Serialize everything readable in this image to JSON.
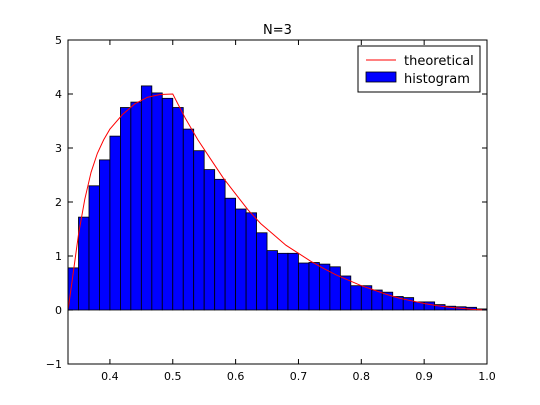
{
  "chart_data": {
    "type": "bar",
    "title": "N=3",
    "xlabel": "",
    "ylabel": "",
    "xlim": [
      0.3333,
      1.0
    ],
    "ylim": [
      -1,
      5
    ],
    "xticks": [
      0.4,
      0.5,
      0.6,
      0.7,
      0.8,
      0.9,
      1.0
    ],
    "xtick_labels": [
      "0.4",
      "0.5",
      "0.6",
      "0.7",
      "0.8",
      "0.9",
      "1.0"
    ],
    "yticks": [
      -1,
      0,
      1,
      2,
      3,
      4,
      5
    ],
    "ytick_labels": [
      "−1",
      "0",
      "1",
      "2",
      "3",
      "4",
      "5"
    ],
    "grid": false,
    "legend_position": "top-right",
    "series": [
      {
        "name": "histogram",
        "kind": "bar",
        "color": "#0000ff",
        "edge_color": "#000000",
        "bin_edges": [
          0.3333,
          0.35,
          0.3667,
          0.3833,
          0.4,
          0.4167,
          0.4333,
          0.45,
          0.4667,
          0.4833,
          0.5,
          0.5167,
          0.5333,
          0.55,
          0.5667,
          0.5833,
          0.6,
          0.6167,
          0.6333,
          0.65,
          0.6667,
          0.6833,
          0.7,
          0.7167,
          0.7333,
          0.75,
          0.7667,
          0.7833,
          0.8,
          0.8167,
          0.8333,
          0.85,
          0.8667,
          0.8833,
          0.9,
          0.9167,
          0.9333,
          0.95,
          0.9667,
          0.9833,
          1.0
        ],
        "values": [
          0.78,
          1.72,
          2.3,
          2.78,
          3.22,
          3.75,
          3.85,
          4.15,
          4.02,
          3.92,
          3.75,
          3.35,
          2.95,
          2.6,
          2.42,
          2.07,
          1.87,
          1.8,
          1.43,
          1.1,
          1.05,
          1.05,
          0.87,
          0.88,
          0.85,
          0.8,
          0.63,
          0.45,
          0.45,
          0.37,
          0.33,
          0.25,
          0.23,
          0.15,
          0.15,
          0.1,
          0.07,
          0.06,
          0.05,
          0.02
        ]
      },
      {
        "name": "theoretical",
        "kind": "line",
        "color": "#ff0000",
        "x": [
          0.3333,
          0.34,
          0.35,
          0.36,
          0.37,
          0.38,
          0.39,
          0.4,
          0.42,
          0.44,
          0.46,
          0.48,
          0.5,
          0.52,
          0.54,
          0.56,
          0.58,
          0.6,
          0.62,
          0.64,
          0.66,
          0.68,
          0.7,
          0.72,
          0.74,
          0.76,
          0.78,
          0.8,
          0.82,
          0.84,
          0.86,
          0.88,
          0.9,
          0.92,
          0.94,
          0.96,
          0.98,
          1.0
        ],
        "y": [
          0.0,
          0.55,
          1.4,
          2.05,
          2.55,
          2.9,
          3.15,
          3.35,
          3.62,
          3.82,
          3.94,
          3.99,
          4.0,
          3.55,
          3.15,
          2.8,
          2.45,
          2.15,
          1.85,
          1.6,
          1.4,
          1.2,
          1.05,
          0.9,
          0.77,
          0.65,
          0.55,
          0.45,
          0.37,
          0.29,
          0.22,
          0.17,
          0.12,
          0.08,
          0.05,
          0.03,
          0.01,
          0.0
        ]
      }
    ]
  }
}
